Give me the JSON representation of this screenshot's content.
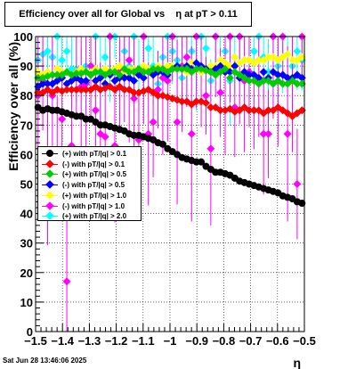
{
  "footer": "Sat Jun 28 13:46:06 2025",
  "colors": {
    "s1": "#000000",
    "s2": "#ff0000",
    "s3": "#00cc00",
    "s4": "#0000ff",
    "s5": "#ffff00",
    "s6": "#ff00ff",
    "s7": "#00ffff"
  },
  "chart_data": {
    "type": "scatter",
    "title": "Efficiency over all for Global vs    η at pT > 0.11",
    "xlabel": "η",
    "ylabel": "Efficiency over all (%)",
    "xlim": [
      -1.5,
      -0.5
    ],
    "ylim": [
      0,
      100
    ],
    "xticks": [
      "−1.5",
      "−1.4",
      "−1.3",
      "−1.2",
      "−1.1",
      "−1",
      "−0.9",
      "−0.8",
      "−0.7",
      "−0.6",
      "−0.5"
    ],
    "yticks": [
      "0",
      "10",
      "20",
      "30",
      "40",
      "50",
      "60",
      "70",
      "80",
      "90",
      "100"
    ],
    "grid": true,
    "legend_position": "left-middle",
    "series": [
      {
        "name": "(+) with pT/|q| > 0.1",
        "values": [
          76,
          75,
          75.5,
          75,
          75,
          74.5,
          74,
          73.5,
          73,
          73,
          72,
          72,
          71,
          70,
          70,
          69.5,
          69,
          68.5,
          68,
          67,
          66.5,
          66.5,
          66,
          65.5,
          65,
          64,
          63.5,
          62,
          61,
          60,
          59,
          58.5,
          58,
          57.5,
          57.5,
          56,
          55,
          54,
          54,
          53.5,
          53,
          52,
          51,
          50.5,
          50,
          49.5,
          49,
          48.5,
          48,
          47.5,
          47,
          46,
          45.5,
          45,
          44,
          43.5
        ]
      },
      {
        "name": "(-) with pT/|q| > 0.1",
        "values": [
          81,
          81,
          82,
          81,
          82,
          81.5,
          82,
          82,
          82,
          82,
          82,
          82,
          83,
          82,
          82.5,
          83,
          82,
          83,
          82,
          82,
          81,
          81,
          81.5,
          82,
          81,
          80,
          80,
          79.5,
          79,
          78.5,
          78,
          78,
          77,
          78,
          78,
          77.5,
          76,
          76,
          75,
          75,
          75.5,
          74.5,
          75,
          76,
          75,
          75,
          75,
          74,
          75,
          75,
          76,
          75,
          74,
          73,
          74,
          75
        ]
      },
      {
        "name": "(+) with pT/|q| > 0.5",
        "values": [
          86,
          86,
          86.5,
          87,
          87,
          87,
          88,
          87,
          87.5,
          87.5,
          88,
          87,
          88,
          88,
          87,
          88,
          88,
          87,
          89,
          88,
          88,
          89,
          88,
          88,
          89,
          89,
          89,
          88,
          89,
          89,
          89,
          89,
          88,
          89,
          89,
          88.5,
          88,
          87,
          88,
          89,
          86,
          88,
          87,
          86,
          85,
          85,
          84,
          85,
          85,
          84,
          85,
          84,
          84,
          85,
          84,
          84
        ]
      },
      {
        "name": "(-) with pT/|q| > 0.5",
        "values": [
          83,
          84,
          84,
          84,
          85,
          86,
          84,
          85,
          86,
          85,
          85,
          87,
          85,
          86,
          84,
          87,
          85,
          86,
          86,
          86,
          85,
          87,
          86,
          88,
          87,
          88,
          88,
          87,
          89,
          90,
          89,
          90,
          89,
          91,
          90,
          89,
          88,
          89,
          90,
          88,
          88,
          90,
          86,
          88,
          87,
          87,
          86,
          88,
          86,
          88,
          87,
          87,
          86,
          86,
          87,
          86
        ]
      },
      {
        "name": "(+) with pT/|q| > 1.0",
        "values": [
          88,
          87,
          88,
          87,
          89,
          88,
          88,
          87,
          88,
          89,
          88,
          88,
          89,
          88,
          89,
          88,
          89,
          90,
          88,
          89,
          89,
          88,
          90,
          89,
          89,
          90,
          89,
          90,
          90,
          89,
          89,
          88,
          91,
          89,
          88,
          89,
          90,
          90,
          92,
          91,
          90,
          93,
          91,
          92,
          92,
          91,
          92,
          92,
          93,
          93,
          92,
          93,
          94,
          92,
          92,
          93
        ]
      },
      {
        "name": "(-) with pT/|q| > 1.0",
        "values": [
          80,
          85,
          59,
          80,
          61,
          72,
          17,
          63,
          88,
          83,
          84,
          90,
          75,
          67,
          66,
          100,
          63,
          88,
          86,
          92,
          79,
          65,
          100,
          67,
          71,
          82,
          86,
          85,
          100,
          71,
          90,
          93,
          67,
          100,
          88,
          80,
          62,
          100,
          81,
          88,
          100,
          76,
          100,
          85,
          88,
          75,
          92,
          67,
          67,
          100,
          85,
          100,
          67,
          85,
          50,
          100
        ]
      },
      {
        "name": "(+) with pT/|q| > 2.0",
        "values": [
          92,
          94,
          95,
          93,
          100,
          92,
          95,
          89,
          89,
          88,
          90,
          90,
          100,
          87,
          93,
          88,
          100,
          83,
          95,
          90,
          100,
          87,
          100,
          96,
          90,
          84,
          93,
          100,
          95,
          92,
          86,
          90,
          95,
          91,
          100,
          96,
          85,
          100,
          89,
          95,
          85,
          93,
          100,
          88,
          92,
          95,
          100,
          93,
          88,
          100,
          90,
          93,
          94,
          90,
          95,
          92
        ]
      }
    ]
  }
}
